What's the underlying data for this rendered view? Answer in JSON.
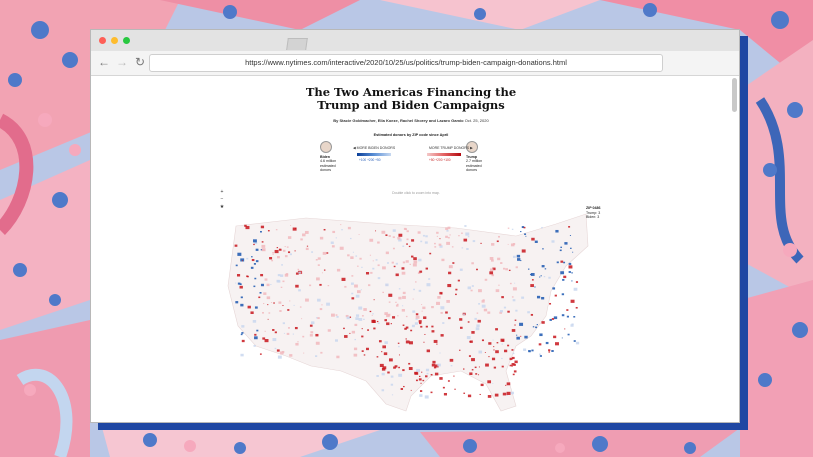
{
  "browser": {
    "url": "https://www.nytimes.com/interactive/2020/10/25/us/politics/trump-biden-campaign-donations.html"
  },
  "article": {
    "headline": "The Two Americas Financing the Trump and Biden Campaigns",
    "byline_authors": "By Stacie Goldmacher, Ella Koeze, Rachel Shorey and Lazaro Gamio",
    "byline_date": "Oct. 25, 2020"
  },
  "legend": {
    "title": "Estimated donors by ZIP code since April",
    "more_biden": "◀ MORE BIDEN DONORS",
    "more_trump": "MORE TRUMP DONORS ▶",
    "biden_nums": "+100 +200 +50",
    "trump_nums": "+50 +200 +100",
    "blue_color": "#1b57b0",
    "red_color": "#c8161d"
  },
  "candidates": {
    "biden": {
      "name": "Biden",
      "line1": "4.6 million",
      "line2": "estimated",
      "line3": "donors"
    },
    "trump": {
      "name": "Trump",
      "line1": "2.7 million",
      "line2": "estimated",
      "line3": "donors"
    }
  },
  "map": {
    "hint": "Double click to zoom into map.",
    "tooltip": {
      "zip": "ZIP 0486",
      "trump": "Trump: 3",
      "biden": "Biden: 3"
    },
    "zoom_in": "+",
    "zoom_out": "−",
    "pin": "★"
  }
}
